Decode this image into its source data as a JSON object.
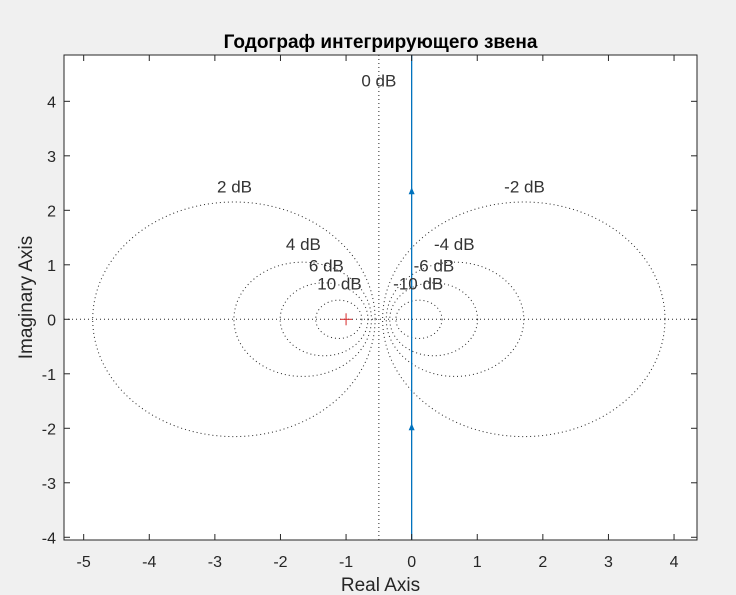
{
  "chart_data": {
    "type": "line",
    "title": "Годограф интегрирующего звена",
    "xlabel": "Real Axis",
    "ylabel": "Imaginary Axis",
    "xlim": [
      -5.3,
      4.35
    ],
    "ylim": [
      -4.05,
      4.85
    ],
    "xticks": [
      -5,
      -4,
      -3,
      -2,
      -1,
      0,
      1,
      2,
      3,
      4
    ],
    "yticks": [
      -4,
      -3,
      -2,
      -1,
      0,
      1,
      2,
      3,
      4
    ],
    "xtick_labels": [
      "-5",
      "-4",
      "-3",
      "-2",
      "-1",
      "0",
      "1",
      "2",
      "3",
      "4"
    ],
    "ytick_labels": [
      "-4",
      "-3",
      "-2",
      "-1",
      "0",
      "1",
      "2",
      "3",
      "4"
    ],
    "grid": true,
    "series": [
      {
        "x": [
          0,
          0
        ],
        "y": [
          -4.05,
          4.85
        ],
        "color": "#0072bd",
        "arrows_y": [
          2.35,
          -1.98
        ]
      }
    ],
    "critical_point": {
      "x": -1,
      "y": 0,
      "marker": "+",
      "color": "#d62728"
    },
    "m_circles": [
      {
        "db": 2,
        "label": "2 dB",
        "label_x": -2.7,
        "label_y": 2.33
      },
      {
        "db": -2,
        "label": "-2 dB",
        "label_x": 1.72,
        "label_y": 2.33
      },
      {
        "db": 4,
        "label": "4 dB",
        "label_x": -1.65,
        "label_y": 1.27
      },
      {
        "db": -4,
        "label": "-4 dB",
        "label_x": 0.65,
        "label_y": 1.27
      },
      {
        "db": 6,
        "label": "6 dB",
        "label_x": -1.3,
        "label_y": 0.88
      },
      {
        "db": -6,
        "label": "-6 dB",
        "label_x": 0.34,
        "label_y": 0.88
      },
      {
        "db": 10,
        "label": "10 dB",
        "label_x": -1.1,
        "label_y": 0.55
      },
      {
        "db": -10,
        "label": "-10 dB",
        "label_x": 0.1,
        "label_y": 0.55
      }
    ],
    "zero_db_line": {
      "x": -0.5,
      "label": "0 dB",
      "label_x": -0.5,
      "label_y": 4.27
    }
  }
}
